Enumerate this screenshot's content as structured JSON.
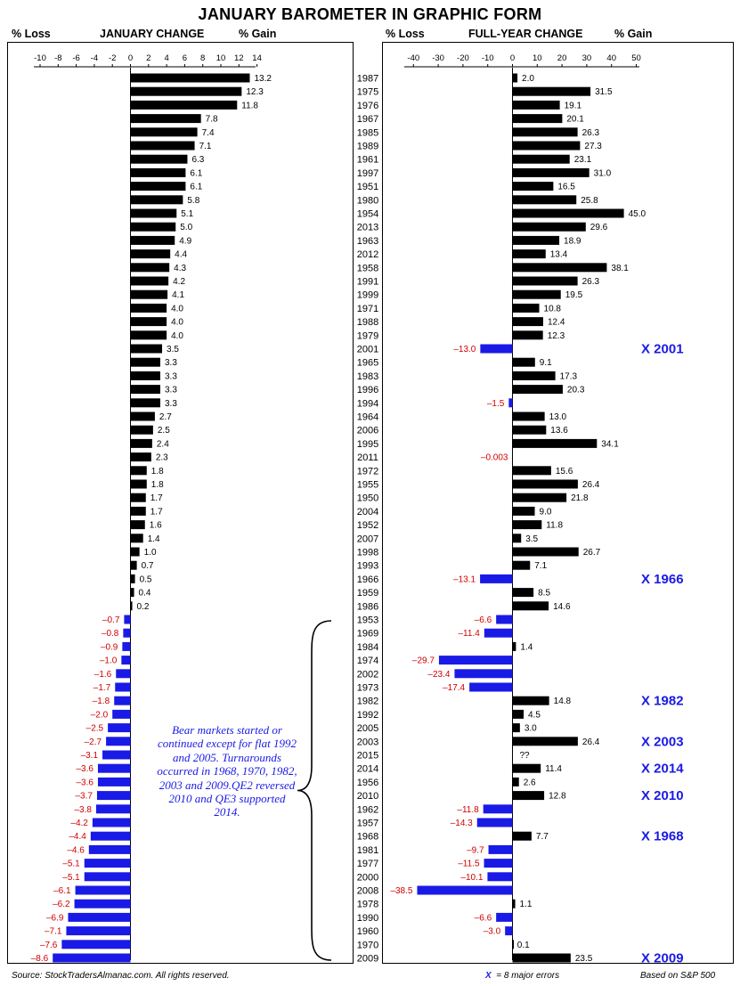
{
  "title": "JANUARY BAROMETER IN GRAPHIC FORM",
  "left_header": {
    "loss": "% Loss",
    "change": "JANUARY CHANGE",
    "gain": "% Gain"
  },
  "right_header": {
    "loss": "% Loss",
    "change": "FULL-YEAR CHANGE",
    "gain": "% Gain"
  },
  "note": "Bear markets started or continued except for flat 1992 and 2005. Turnarounds occurred in 1968, 1970, 1982, 2003 and 2009.QE2 reversed 2010 and QE3 supported 2014.",
  "footer": {
    "source": "Source: StockTradersAlmanac.com. All rights reserved.",
    "legend_x": "X",
    "legend_text": "= 8 major errors",
    "basis": "Based on S&P 500"
  },
  "colors": {
    "positive": "#000000",
    "negative": "#1a1ae6",
    "negative_label": "#d00000",
    "error_marker": "#1a1ae6"
  },
  "chart_data": [
    {
      "type": "bar",
      "orientation": "horizontal",
      "title": "JANUARY CHANGE",
      "xlim": [
        -10,
        14
      ],
      "xticks": [
        -10,
        -8,
        -6,
        -4,
        -2,
        0,
        2,
        4,
        6,
        8,
        10,
        12,
        14
      ],
      "categories": [
        "1987",
        "1975",
        "1976",
        "1967",
        "1985",
        "1989",
        "1961",
        "1997",
        "1951",
        "1980",
        "1954",
        "2013",
        "1963",
        "2012",
        "1958",
        "1991",
        "1999",
        "1971",
        "1988",
        "1979",
        "2001",
        "1965",
        "1983",
        "1996",
        "1994",
        "1964",
        "2006",
        "1995",
        "2011",
        "1972",
        "1955",
        "1950",
        "2004",
        "1952",
        "2007",
        "1998",
        "1993",
        "1966",
        "1959",
        "1986",
        "1953",
        "1969",
        "1984",
        "1974",
        "2002",
        "1973",
        "1982",
        "1992",
        "2005",
        "2003",
        "2015",
        "2014",
        "1956",
        "2010",
        "1962",
        "1957",
        "1968",
        "1981",
        "1977",
        "2000",
        "2008",
        "1978",
        "1990",
        "1960",
        "1970",
        "2009"
      ],
      "values": [
        13.2,
        12.3,
        11.8,
        7.8,
        7.4,
        7.1,
        6.3,
        6.1,
        6.1,
        5.8,
        5.1,
        5.0,
        4.9,
        4.4,
        4.3,
        4.2,
        4.1,
        4.0,
        4.0,
        4.0,
        3.5,
        3.3,
        3.3,
        3.3,
        3.3,
        2.7,
        2.5,
        2.4,
        2.3,
        1.8,
        1.8,
        1.7,
        1.7,
        1.6,
        1.4,
        1.0,
        0.7,
        0.5,
        0.4,
        0.2,
        -0.7,
        -0.8,
        -0.9,
        -1.0,
        -1.6,
        -1.7,
        -1.8,
        -2.0,
        -2.5,
        -2.7,
        -3.1,
        -3.6,
        -3.6,
        -3.7,
        -3.8,
        -4.2,
        -4.4,
        -4.6,
        -5.1,
        -5.1,
        -6.1,
        -6.2,
        -6.9,
        -7.1,
        -7.6,
        -8.6
      ],
      "labels": [
        "13.2",
        "12.3",
        "11.8",
        "7.8",
        "7.4",
        "7.1",
        "6.3",
        "6.1",
        "6.1",
        "5.8",
        "5.1",
        "5.0",
        "4.9",
        "4.4",
        "4.3",
        "4.2",
        "4.1",
        "4.0",
        "4.0",
        "4.0",
        "3.5",
        "3.3",
        "3.3",
        "3.3",
        "3.3",
        "2.7",
        "2.5",
        "2.4",
        "2.3",
        "1.8",
        "1.8",
        "1.7",
        "1.7",
        "1.6",
        "1.4",
        "1.0",
        "0.7",
        "0.5",
        "0.4",
        "0.2",
        "–0.7",
        "–0.8",
        "–0.9",
        "–1.0",
        "–1.6",
        "–1.7",
        "–1.8",
        "–2.0",
        "–2.5",
        "–2.7",
        "–3.1",
        "–3.6",
        "–3.6",
        "–3.7",
        "–3.8",
        "–4.2",
        "–4.4",
        "–4.6",
        "–5.1",
        "–5.1",
        "–6.1",
        "–6.2",
        "–6.9",
        "–7.1",
        "–7.6",
        "–8.6"
      ]
    },
    {
      "type": "bar",
      "orientation": "horizontal",
      "title": "FULL-YEAR CHANGE",
      "xlim": [
        -40,
        50
      ],
      "xticks": [
        -40,
        -30,
        -20,
        -10,
        0,
        10,
        20,
        30,
        40,
        50
      ],
      "categories": [
        "1987",
        "1975",
        "1976",
        "1967",
        "1985",
        "1989",
        "1961",
        "1997",
        "1951",
        "1980",
        "1954",
        "2013",
        "1963",
        "2012",
        "1958",
        "1991",
        "1999",
        "1971",
        "1988",
        "1979",
        "2001",
        "1965",
        "1983",
        "1996",
        "1994",
        "1964",
        "2006",
        "1995",
        "2011",
        "1972",
        "1955",
        "1950",
        "2004",
        "1952",
        "2007",
        "1998",
        "1993",
        "1966",
        "1959",
        "1986",
        "1953",
        "1969",
        "1984",
        "1974",
        "2002",
        "1973",
        "1982",
        "1992",
        "2005",
        "2003",
        "2015",
        "2014",
        "1956",
        "2010",
        "1962",
        "1957",
        "1968",
        "1981",
        "1977",
        "2000",
        "2008",
        "1978",
        "1990",
        "1960",
        "1970",
        "2009"
      ],
      "values": [
        2.0,
        31.5,
        19.1,
        20.1,
        26.3,
        27.3,
        23.1,
        31.0,
        16.5,
        25.8,
        45.0,
        29.6,
        18.9,
        13.4,
        38.1,
        26.3,
        19.5,
        10.8,
        12.4,
        12.3,
        -13.0,
        9.1,
        17.3,
        20.3,
        -1.5,
        13.0,
        13.6,
        34.1,
        -0.003,
        15.6,
        26.4,
        21.8,
        9.0,
        11.8,
        3.5,
        26.7,
        7.1,
        -13.1,
        8.5,
        14.6,
        -6.6,
        -11.4,
        1.4,
        -29.7,
        -23.4,
        -17.4,
        14.8,
        4.5,
        3.0,
        26.4,
        null,
        11.4,
        2.6,
        12.8,
        -11.8,
        -14.3,
        7.7,
        -9.7,
        -11.5,
        -10.1,
        -38.5,
        1.1,
        -6.6,
        -3.0,
        0.1,
        23.5
      ],
      "labels": [
        "2.0",
        "31.5",
        "19.1",
        "20.1",
        "26.3",
        "27.3",
        "23.1",
        "31.0",
        "16.5",
        "25.8",
        "45.0",
        "29.6",
        "18.9",
        "13.4",
        "38.1",
        "26.3",
        "19.5",
        "10.8",
        "12.4",
        "12.3",
        "–13.0",
        "9.1",
        "17.3",
        "20.3",
        "–1.5",
        "13.0",
        "13.6",
        "34.1",
        "–0.003",
        "15.6",
        "26.4",
        "21.8",
        "9.0",
        "11.8",
        "3.5",
        "26.7",
        "7.1",
        "–13.1",
        "8.5",
        "14.6",
        "–6.6",
        "–11.4",
        "1.4",
        "–29.7",
        "–23.4",
        "–17.4",
        "14.8",
        "4.5",
        "3.0",
        "26.4",
        "??",
        "11.4",
        "2.6",
        "12.8",
        "–11.8",
        "–14.3",
        "7.7",
        "–9.7",
        "–11.5",
        "–10.1",
        "–38.5",
        "1.1",
        "–6.6",
        "–3.0",
        "0.1",
        "23.5"
      ],
      "annotations": [
        {
          "year": "2001",
          "text": "X 2001"
        },
        {
          "year": "1966",
          "text": "X 1966"
        },
        {
          "year": "1982",
          "text": "X 1982"
        },
        {
          "year": "2003",
          "text": "X 2003"
        },
        {
          "year": "2014",
          "text": "X 2014"
        },
        {
          "year": "2010",
          "text": "X 2010"
        },
        {
          "year": "1968",
          "text": "X 1968"
        },
        {
          "year": "2009",
          "text": "X 2009"
        }
      ]
    }
  ]
}
